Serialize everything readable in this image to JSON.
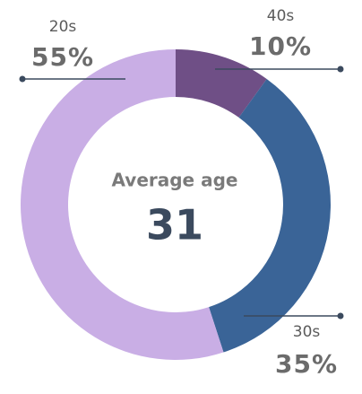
{
  "chart_data": {
    "type": "donut",
    "center_label": "Average age",
    "center_value": 31,
    "categories": [
      "40s",
      "30s",
      "20s"
    ],
    "values": [
      10,
      35,
      55
    ],
    "value_labels": [
      "10%",
      "35%",
      "55%"
    ],
    "colors": [
      "#6f4f86",
      "#3a6497",
      "#c9aee5"
    ]
  }
}
